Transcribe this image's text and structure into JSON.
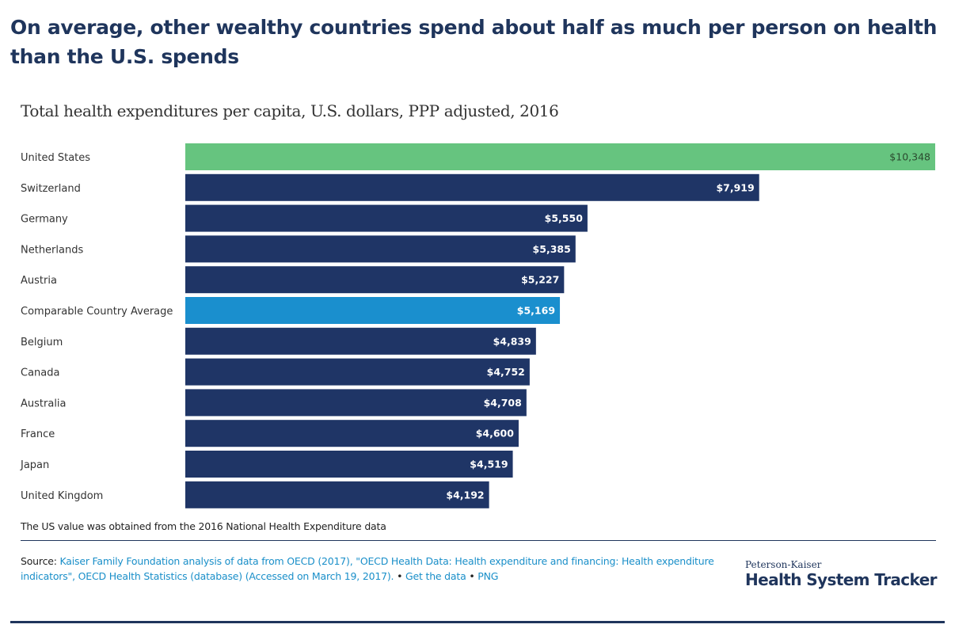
{
  "headline": "On average, other wealthy countries spend about half as much per person on health than the U.S. spends",
  "chart_data": {
    "type": "bar",
    "orientation": "horizontal",
    "title": "Total health expenditures per capita, U.S. dollars, PPP adjusted, 2016",
    "xlabel": "",
    "ylabel": "",
    "xlim": [
      0,
      10348
    ],
    "grid": false,
    "categories": [
      "United States",
      "Switzerland",
      "Germany",
      "Netherlands",
      "Austria",
      "Comparable Country Average",
      "Belgium",
      "Canada",
      "Australia",
      "France",
      "Japan",
      "United Kingdom"
    ],
    "values": [
      10348,
      7919,
      5550,
      5385,
      5227,
      5169,
      4839,
      4752,
      4708,
      4600,
      4519,
      4192
    ],
    "value_labels": [
      "$10,348",
      "$7,919",
      "$5,550",
      "$5,385",
      "$5,227",
      "$5,169",
      "$4,839",
      "$4,752",
      "$4,708",
      "$4,600",
      "$4,519",
      "$4,192"
    ],
    "colors": {
      "United States": "#66c47f",
      "Comparable Country Average": "#1a8fce",
      "default": "#1f3566"
    }
  },
  "note": "The US value was obtained from the 2016 National Health Expenditure data",
  "source": {
    "prefix": "Source: ",
    "text": "Kaiser Family Foundation analysis of data from OECD (2017), \"OECD Health Data: Health expenditure and financing: Health expenditure indicators\", OECD Health Statistics (database) (Accessed on March 19, 2017).",
    "sep1": " • ",
    "get_data": "Get the data",
    "sep2": " • ",
    "png": "PNG"
  },
  "logo": {
    "top": "Peterson-Kaiser",
    "main": "Health System Tracker"
  }
}
